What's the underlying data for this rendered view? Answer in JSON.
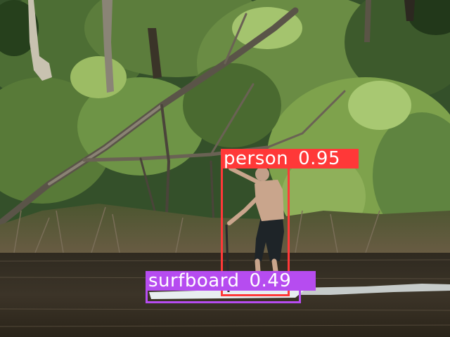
{
  "detections": [
    {
      "label": "person",
      "score": "0.95",
      "color": "#ff3838"
    },
    {
      "label": "surfboard",
      "score": "0.49",
      "color": "#b64cf0"
    }
  ],
  "scene": {
    "description_icons": [
      "tree-icon",
      "water-icon",
      "person-icon",
      "paddleboard-icon"
    ],
    "colors": {
      "foliage_dark": "#2f4a22",
      "foliage_light": "#8fb05a",
      "water": "#3a3226",
      "bank": "#8a7a5c",
      "board": "#e8eef0",
      "skin": "#c9a58c",
      "shorts": "#1e2428"
    }
  }
}
